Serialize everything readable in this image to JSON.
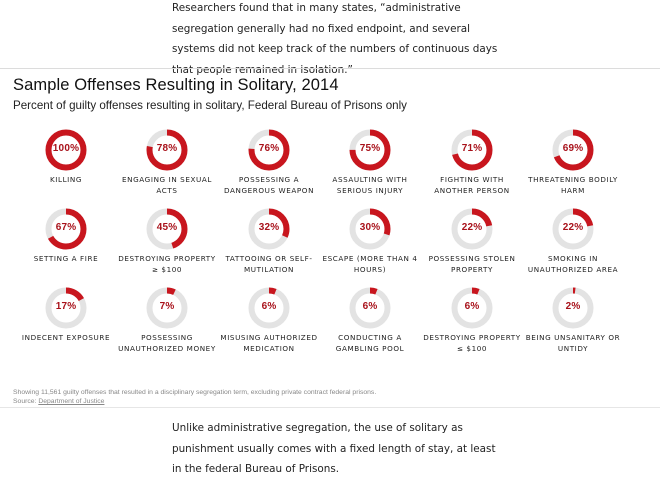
{
  "article": {
    "para_top": "Researchers found that in many states, “administrative segregation generally had no fixed endpoint, and several systems did not keep track of the numbers of continuous days that people remained in isolation.”",
    "para_bottom": "Unlike administrative segregation, the use of solitary as punishment usually comes with a fixed length of stay, at least in the federal Bureau of Prisons."
  },
  "footer": {
    "note": "Showing 11,561 guilty offenses that resulted in a disciplinary segregation term, excluding private contract federal prisons.",
    "source_label": "Source:",
    "source_link": "Department of Justice"
  },
  "colors": {
    "accent": "#c8161e",
    "track": "#e3e3e3",
    "pct_text": "#a8111a"
  },
  "chart_data": {
    "type": "donut-grid",
    "title": "Sample Offenses Resulting in Solitary, 2014",
    "subtitle": "Percent of guilty offenses resulting in solitary, Federal Bureau of Prisons only",
    "unit": "%",
    "items": [
      {
        "label": "Killing",
        "value": 100
      },
      {
        "label": "Engaging in sexual acts",
        "value": 78
      },
      {
        "label": "Possessing a dangerous weapon",
        "value": 76
      },
      {
        "label": "Assaulting with serious injury",
        "value": 75
      },
      {
        "label": "Fighting with another person",
        "value": 71
      },
      {
        "label": "Threatening bodily harm",
        "value": 69
      },
      {
        "label": "Setting a fire",
        "value": 67
      },
      {
        "label": "Destroying property ≥ $100",
        "value": 45
      },
      {
        "label": "Tattooing or self-mutilation",
        "value": 32
      },
      {
        "label": "Escape (more than 4 hours)",
        "value": 30
      },
      {
        "label": "Possessing stolen property",
        "value": 22
      },
      {
        "label": "Smoking in unauthorized area",
        "value": 22
      },
      {
        "label": "Indecent exposure",
        "value": 17
      },
      {
        "label": "Possessing unauthorized money",
        "value": 7
      },
      {
        "label": "Misusing authorized medication",
        "value": 6
      },
      {
        "label": "Conducting a gambling pool",
        "value": 6
      },
      {
        "label": "Destroying property ≤ $100",
        "value": 6
      },
      {
        "label": "Being unsanitary or untidy",
        "value": 2
      }
    ]
  }
}
